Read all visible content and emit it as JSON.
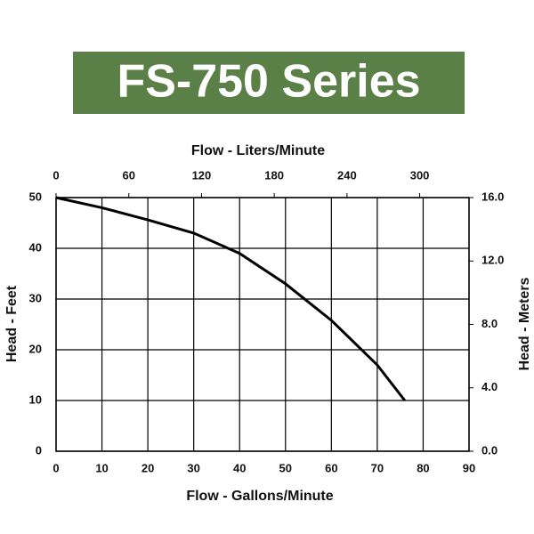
{
  "chart_data": {
    "type": "line",
    "title": "FS-750 Series",
    "xlabel": "Flow - Gallons/Minute",
    "x2label": "Flow - Liters/Minute",
    "ylabel": "Head - Feet",
    "y2label": "Head - Meters",
    "xlim": [
      0,
      90
    ],
    "xticks": [
      0,
      10,
      20,
      30,
      40,
      50,
      60,
      70,
      80,
      90
    ],
    "x2lim": [
      0,
      340.7
    ],
    "x2ticks": [
      0,
      60,
      120,
      180,
      240,
      300
    ],
    "ylim": [
      0,
      50
    ],
    "yticks": [
      0,
      10,
      20,
      30,
      40,
      50
    ],
    "y2lim": [
      0,
      16
    ],
    "y2ticks": [
      {
        "value": 0,
        "label": "0.0"
      },
      {
        "value": 4,
        "label": "4.0"
      },
      {
        "value": 8,
        "label": "8.0"
      },
      {
        "value": 12,
        "label": "12.0"
      },
      {
        "value": 16,
        "label": "16.0"
      }
    ],
    "grid": true,
    "series": [
      {
        "color": "#000000",
        "x": [
          0,
          10,
          20,
          30,
          40,
          50,
          60,
          70,
          76
        ],
        "values": [
          50,
          48,
          45.6,
          43,
          39,
          33,
          25.8,
          17,
          10
        ]
      }
    ]
  }
}
